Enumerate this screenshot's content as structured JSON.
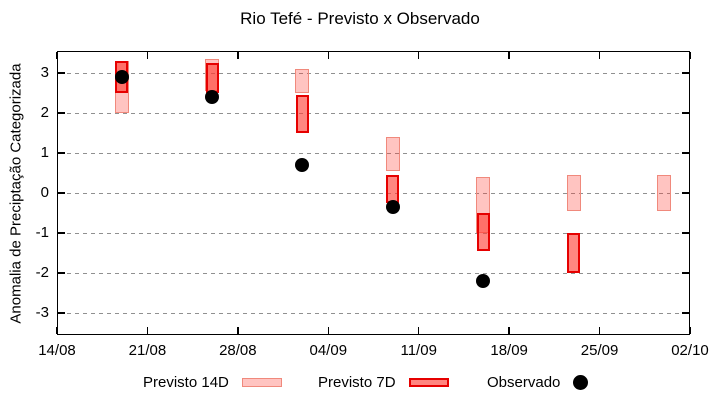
{
  "chart_data": {
    "type": "bar",
    "subtype": "forecast-range-candles-with-observed-points",
    "title": "Rio Tefé - Previsto x Observado",
    "ylabel": "Anomalia de Preciptação Categorizada",
    "xlabel": "",
    "ylim": [
      -3.55,
      3.55
    ],
    "yticks": [
      3,
      2,
      1,
      0,
      -1,
      -2,
      -3
    ],
    "x_span_days": 49,
    "xticks": [
      {
        "label": "14/08",
        "day": 0
      },
      {
        "label": "21/08",
        "day": 7
      },
      {
        "label": "28/08",
        "day": 14
      },
      {
        "label": "04/09",
        "day": 21
      },
      {
        "label": "11/09",
        "day": 28
      },
      {
        "label": "18/09",
        "day": 35
      },
      {
        "label": "25/09",
        "day": 42
      },
      {
        "label": "02/10",
        "day": 49
      }
    ],
    "grid": true,
    "legend_position": "bottom",
    "legend": [
      {
        "label": "Previsto 14D",
        "swatch": "light-red-box"
      },
      {
        "label": "Previsto 7D",
        "swatch": "dark-red-box"
      },
      {
        "label": "Observado",
        "swatch": "black-dot"
      }
    ],
    "series": [
      {
        "date": "19/08",
        "day": 5,
        "previsto_14d": [
          2.0,
          3.3
        ],
        "previsto_7d": [
          2.5,
          3.3
        ],
        "observado": 2.9
      },
      {
        "date": "26/08",
        "day": 12,
        "previsto_14d": [
          2.55,
          3.35
        ],
        "previsto_7d": [
          2.5,
          3.25
        ],
        "observado": 2.4
      },
      {
        "date": "02/09",
        "day": 19,
        "previsto_14d": [
          2.5,
          3.1
        ],
        "previsto_7d": [
          1.5,
          2.45
        ],
        "observado": 0.7
      },
      {
        "date": "09/09",
        "day": 26,
        "previsto_14d": [
          0.55,
          1.4
        ],
        "previsto_7d": [
          -0.25,
          0.45
        ],
        "observado": -0.35
      },
      {
        "date": "16/09",
        "day": 33,
        "previsto_14d": [
          -1.0,
          0.4
        ],
        "previsto_7d": [
          -1.45,
          -0.5
        ],
        "observado": -2.2
      },
      {
        "date": "23/09",
        "day": 40,
        "previsto_14d": [
          -0.45,
          0.45
        ],
        "previsto_7d": [
          -2.0,
          -1.0
        ],
        "observado": null
      },
      {
        "date": "30/09",
        "day": 47,
        "previsto_14d": [
          -0.45,
          0.45
        ],
        "previsto_7d": null,
        "observado": null
      }
    ],
    "colors": {
      "range_base": "#FF3C32",
      "p14_fill_alpha": 0.3,
      "p14_border": "#F0897C",
      "p7_fill_alpha": 0.62,
      "p7_border": "#E60000",
      "observado": "#000000",
      "grid": "#909090",
      "axis": "#000000"
    }
  }
}
